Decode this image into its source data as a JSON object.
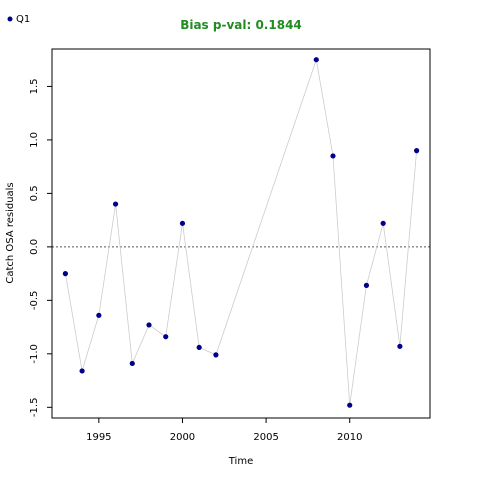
{
  "chart_data": {
    "type": "line",
    "title": "Bias p-val: 0.1844",
    "title_color": "#228B22",
    "xlabel": "Time",
    "ylabel": "Catch OSA residuals",
    "xlim": [
      1992.2,
      2014.8
    ],
    "ylim": [
      -1.6,
      1.85
    ],
    "x_ticks": [
      1995,
      2000,
      2005,
      2010
    ],
    "y_ticks": [
      -1.5,
      -1.0,
      -0.5,
      0.0,
      0.5,
      1.0,
      1.5
    ],
    "x_tick_labels": [
      "1995",
      "2000",
      "2005",
      "2010"
    ],
    "y_tick_labels": [
      "-1.5",
      "-1.0",
      "-0.5",
      "0.0",
      "0.5",
      "1.0",
      "1.5"
    ],
    "reference_line": 0.0,
    "grid": false,
    "legend_position": "top-left",
    "series": [
      {
        "name": "Q1",
        "color": "#00008B",
        "line_color": "#cccccc",
        "x": [
          1993,
          1994,
          1995,
          1996,
          1997,
          1998,
          1999,
          2000,
          2001,
          2002,
          2008,
          2009,
          2010,
          2011,
          2012,
          2013,
          2014
        ],
        "values": [
          -0.25,
          -1.16,
          -0.64,
          0.4,
          -1.09,
          -0.73,
          -0.84,
          0.22,
          -0.94,
          -1.01,
          1.75,
          0.85,
          -1.48,
          -0.36,
          0.22,
          -0.93,
          0.9
        ]
      }
    ]
  }
}
